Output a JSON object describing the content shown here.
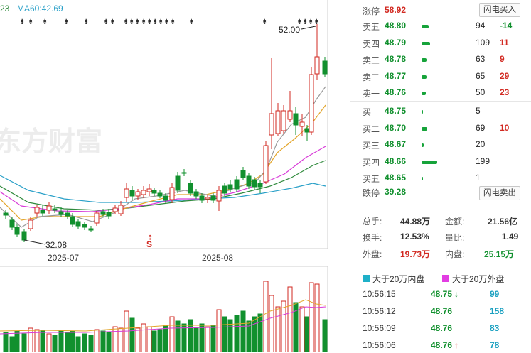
{
  "chart": {
    "ma60_label": "MA60:42.69",
    "ma_partial": "23",
    "watermark": "东方财富",
    "high_label": "52.00",
    "low_label": "32.08",
    "x_labels": [
      "2025-07",
      "2025-08"
    ],
    "s_marker": "S",
    "colors": {
      "up": "#d22a22",
      "down": "#11902e",
      "ma5": "#9a9a9a",
      "ma10": "#e3a52a",
      "ma20": "#d83bd8",
      "ma30": "#2f8a3c",
      "ma60": "#2aa0c8"
    }
  },
  "quote": {
    "limit_up_label": "涨停",
    "limit_up_price": "58.92",
    "flash_buy": "闪电买入",
    "asks": [
      {
        "label": "卖五",
        "price": "48.80",
        "vol": "94",
        "chg": "-14",
        "bar": 0.1
      },
      {
        "label": "卖四",
        "price": "48.79",
        "vol": "109",
        "chg": "11",
        "bar": 0.12
      },
      {
        "label": "卖三",
        "price": "48.78",
        "vol": "63",
        "chg": "9",
        "bar": 0.07
      },
      {
        "label": "卖二",
        "price": "48.77",
        "vol": "65",
        "chg": "29",
        "bar": 0.07
      },
      {
        "label": "卖一",
        "price": "48.76",
        "vol": "50",
        "chg": "23",
        "bar": 0.06
      }
    ],
    "bids": [
      {
        "label": "买一",
        "price": "48.75",
        "vol": "5",
        "chg": "",
        "bar": 0.01
      },
      {
        "label": "买二",
        "price": "48.70",
        "vol": "69",
        "chg": "10",
        "bar": 0.08
      },
      {
        "label": "买三",
        "price": "48.67",
        "vol": "20",
        "chg": "",
        "bar": 0.03
      },
      {
        "label": "买四",
        "price": "48.66",
        "vol": "199",
        "chg": "",
        "bar": 0.22
      },
      {
        "label": "买五",
        "price": "48.65",
        "vol": "1",
        "chg": "",
        "bar": 0.01
      }
    ],
    "limit_down_label": "跌停",
    "limit_down_price": "39.28",
    "flash_sell": "闪电卖出"
  },
  "stats": {
    "total_hands_label": "总手:",
    "total_hands": "44.88万",
    "amount_label": "金额:",
    "amount": "21.56亿",
    "turnover_label": "换手:",
    "turnover": "12.53%",
    "vol_ratio_label": "量比:",
    "vol_ratio": "1.49",
    "outer_label": "外盘:",
    "outer": "19.73万",
    "inner_label": "内盘:",
    "inner": "25.15万"
  },
  "ticks_panel": {
    "legend_inner": "大于20万内盘",
    "legend_outer": "大于20万外盘",
    "legend_inner_color": "#1fb0c8",
    "legend_outer_color": "#e23de2",
    "ticks": [
      {
        "time": "10:56:15",
        "price": "48.75",
        "arrow": "↓",
        "vol": "99"
      },
      {
        "time": "10:56:12",
        "price": "48.76",
        "arrow": "",
        "vol": "158"
      },
      {
        "time": "10:56:09",
        "price": "48.76",
        "arrow": "",
        "vol": "83"
      },
      {
        "time": "10:56:06",
        "price": "48.76",
        "arrow": "↑",
        "vol": "78"
      }
    ]
  }
}
